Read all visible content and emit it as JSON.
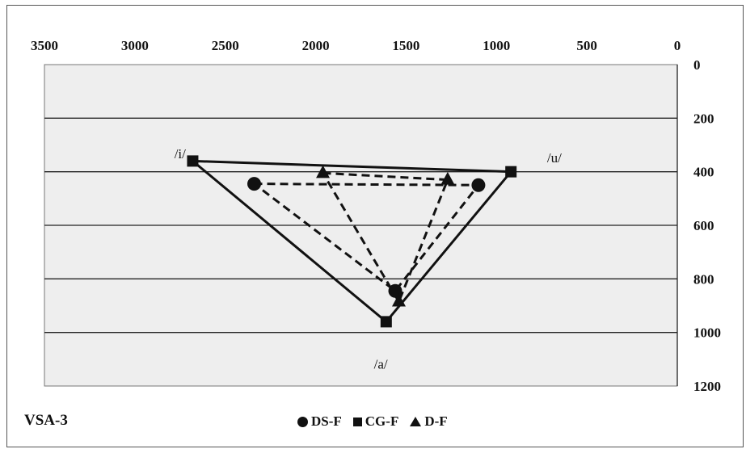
{
  "chart_data": {
    "type": "scatter",
    "title": "VSA-3",
    "x_axis": {
      "reversed": true,
      "position": "top",
      "range": [
        0,
        3500
      ],
      "ticks": [
        3500,
        3000,
        2500,
        2000,
        1500,
        1000,
        500,
        0
      ]
    },
    "y_axis": {
      "reversed": true,
      "position": "right",
      "range": [
        0,
        1200
      ],
      "ticks": [
        0,
        200,
        400,
        600,
        800,
        1000,
        1200
      ]
    },
    "grid": "horizontal",
    "legend_position": "bottom-center",
    "series": [
      {
        "name": "DS-F",
        "marker": "circle",
        "line": "dashed",
        "points": [
          {
            "x": 2340,
            "y": 445
          },
          {
            "x": 1100,
            "y": 450
          },
          {
            "x": 1560,
            "y": 845
          }
        ]
      },
      {
        "name": "CG-F",
        "marker": "square",
        "line": "solid",
        "points": [
          {
            "x": 2680,
            "y": 360
          },
          {
            "x": 920,
            "y": 400
          },
          {
            "x": 1610,
            "y": 960
          }
        ]
      },
      {
        "name": "D-F",
        "marker": "triangle",
        "line": "dashed",
        "points": [
          {
            "x": 1960,
            "y": 405
          },
          {
            "x": 1270,
            "y": 430
          },
          {
            "x": 1540,
            "y": 885
          }
        ]
      }
    ],
    "vowel_labels": [
      {
        "text": "/i/",
        "x": 2750,
        "y": 350
      },
      {
        "text": "/u/",
        "x": 680,
        "y": 365
      },
      {
        "text": "/a/",
        "x": 1640,
        "y": 1135
      }
    ]
  },
  "colors": {
    "plot_background": "#eeeeee",
    "marks": "#111111"
  }
}
